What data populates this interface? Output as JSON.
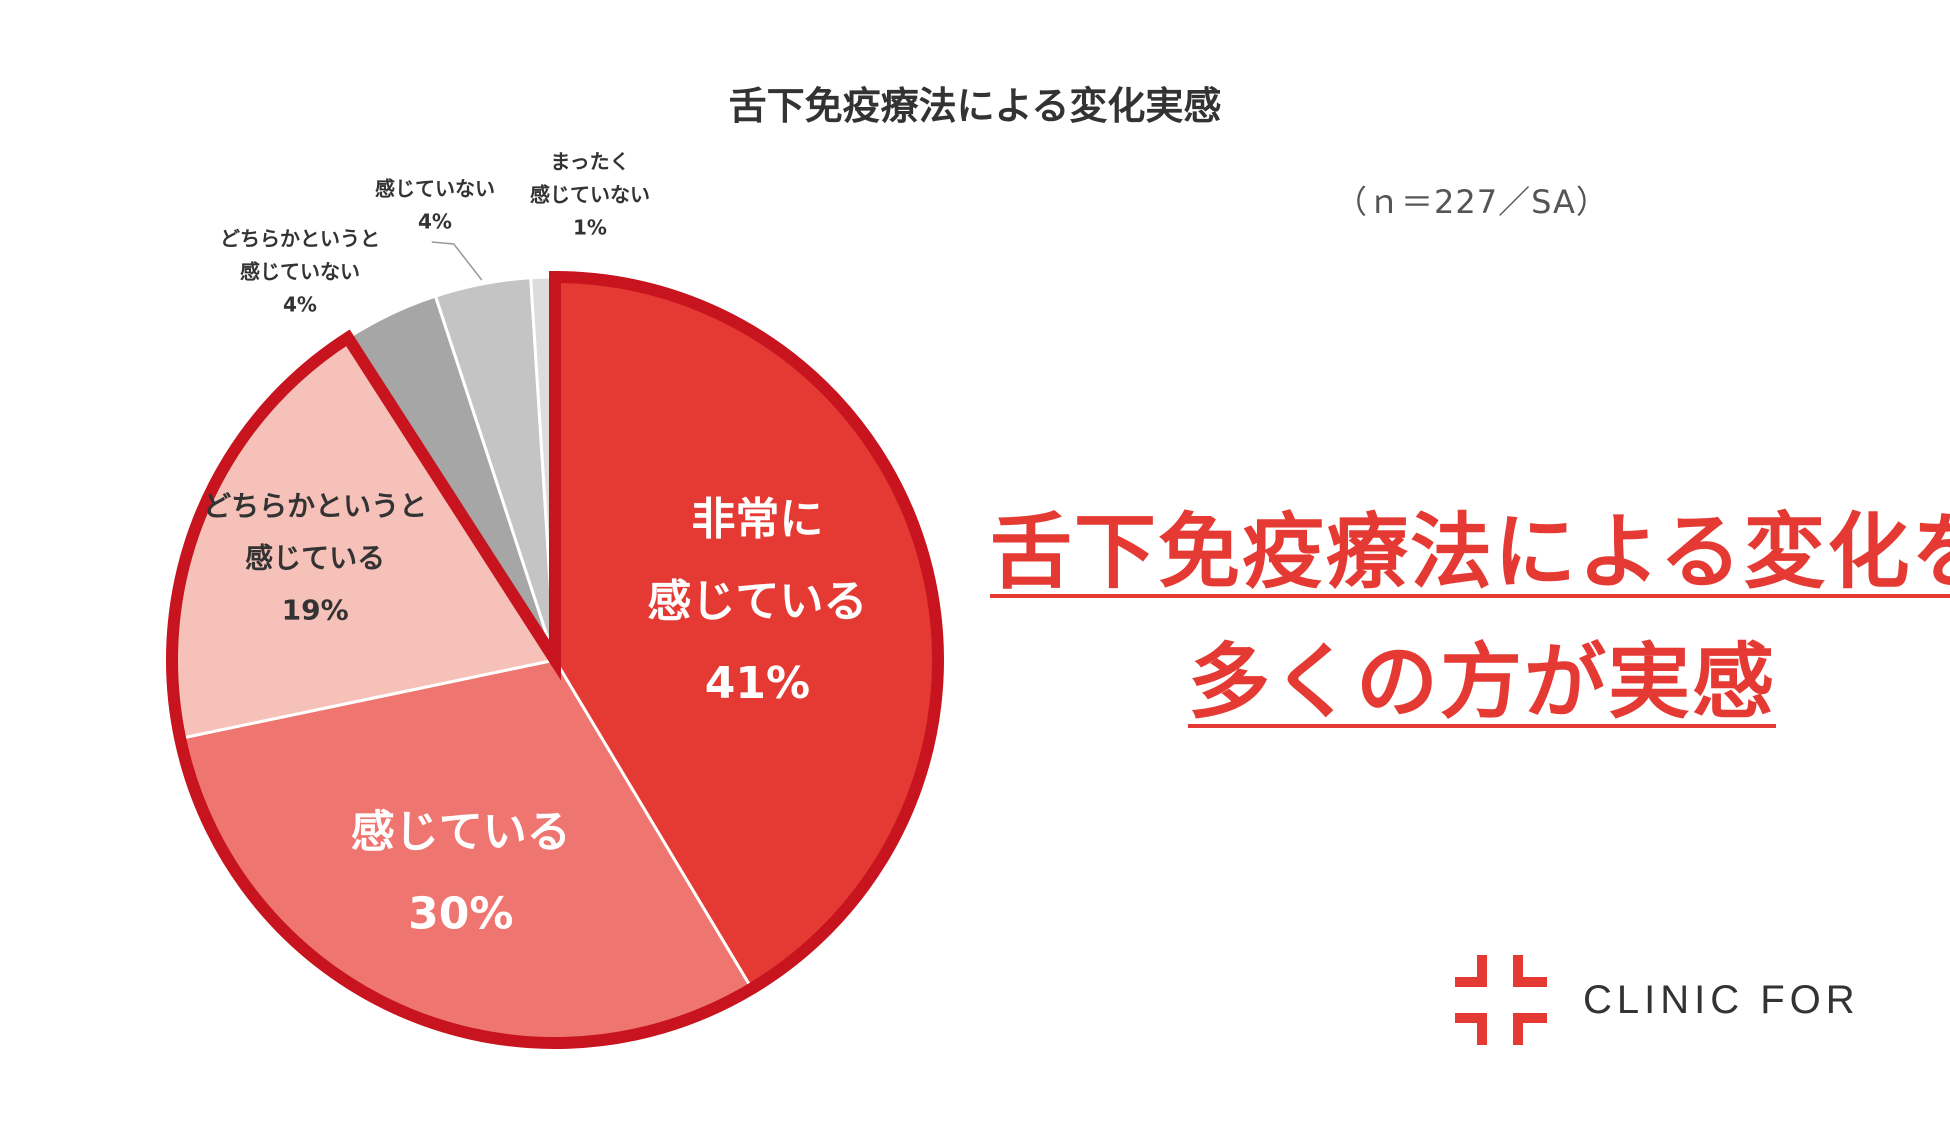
{
  "chart_data": {
    "type": "pie",
    "title": "舌下免疫療法による変化実感",
    "note": "（ｎ＝227／SA）",
    "slices": [
      {
        "name": "非常に感じている",
        "label_lines": [
          "非常に",
          "感じている"
        ],
        "value_label": "41%",
        "value": 41,
        "color": "#e53a33"
      },
      {
        "name": "感じている",
        "label_lines": [
          "感じている"
        ],
        "value_label": "30%",
        "value": 30,
        "color": "#ef7570"
      },
      {
        "name": "どちらかというと感じている",
        "label_lines": [
          "どちらかというと",
          "感じている"
        ],
        "value_label": "19%",
        "value": 19,
        "color": "#f6c1b9"
      },
      {
        "name": "どちらかというと感じていない",
        "label_lines": [
          "どちらかというと",
          "感じていない"
        ],
        "value_label": "4%",
        "value": 4,
        "color": "#a6a6a6"
      },
      {
        "name": "感じていない",
        "label_lines": [
          "感じていない"
        ],
        "value_label": "4%",
        "value": 4,
        "color": "#c4c4c4"
      },
      {
        "name": "まったく感じていない",
        "label_lines": [
          "まったく",
          "感じていない"
        ],
        "value_label": "1%",
        "value": 1,
        "color": "#dcdcdc"
      }
    ],
    "highlight_color": "#c8141e"
  },
  "headline": {
    "line1": "舌下免疫療法による変化を",
    "line2": "多くの方が実感"
  },
  "logo": {
    "text": "CLINIC FOR",
    "icon": "clinic-cross-icon",
    "color": "#e53a33"
  }
}
